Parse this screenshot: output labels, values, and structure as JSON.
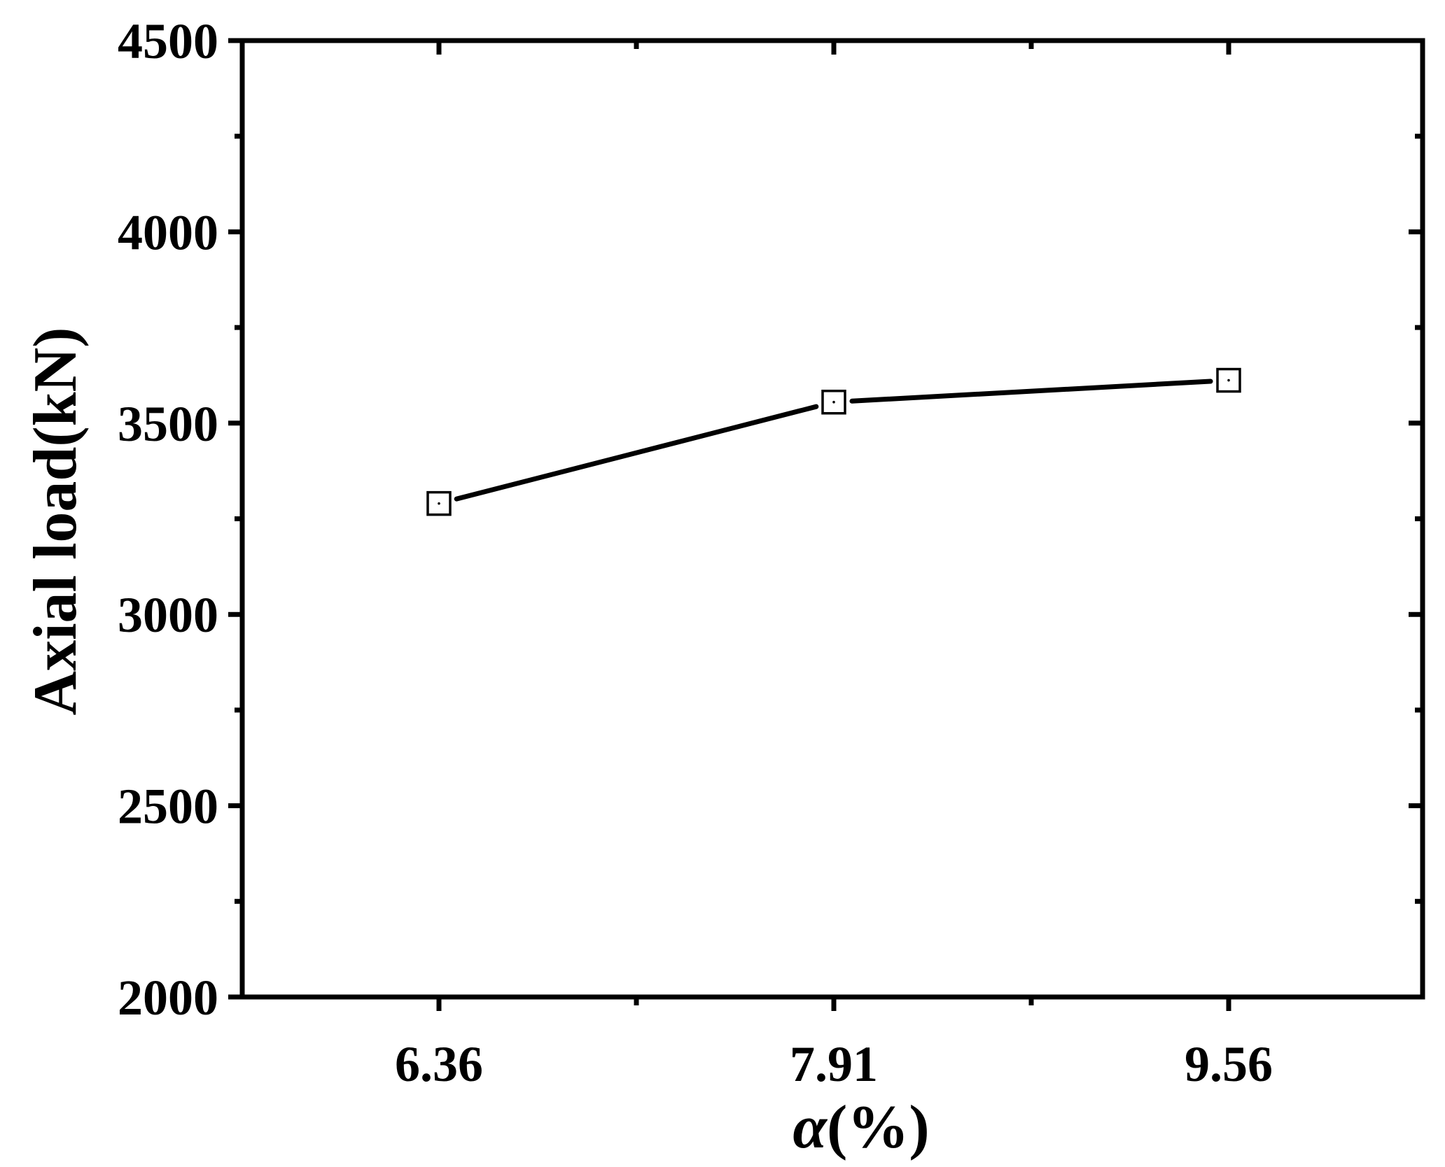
{
  "chart_data": {
    "type": "line",
    "title": "",
    "xlabel": "α(%)",
    "xlabel_parts": {
      "symbol": "α",
      "unit": "(%)"
    },
    "ylabel": "Axial load(kN)",
    "categories": [
      "6.36",
      "7.91",
      "9.56"
    ],
    "series": [
      {
        "values": [
          3290,
          3555,
          3612
        ],
        "color": "#000000",
        "marker": "square-open"
      }
    ],
    "ylim": [
      2000,
      4500
    ],
    "y_ticks": [
      "2000",
      "2500",
      "3000",
      "3500",
      "4000",
      "4500"
    ],
    "grid": false,
    "legend": "none"
  }
}
